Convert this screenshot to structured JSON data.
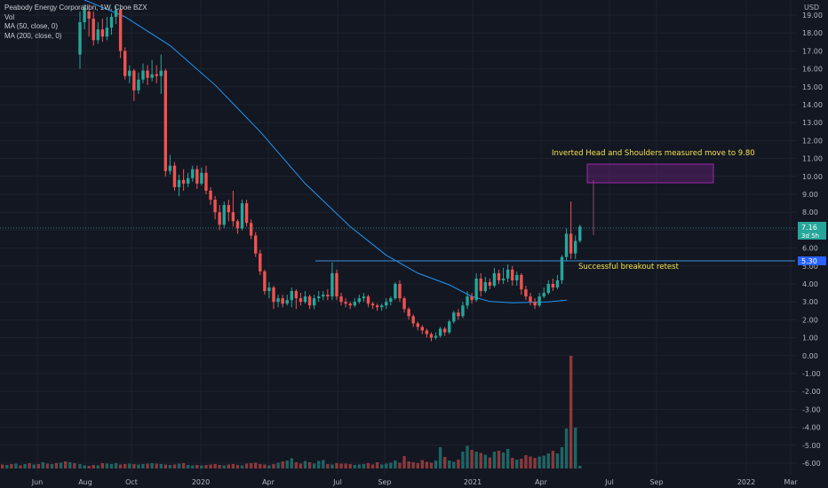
{
  "header": {
    "symbol_line": "Peabody Energy Corporation, 1W, Cboe BZX",
    "vol_label": "Vol",
    "ma50_label": "MA (50, close, 0)",
    "ma200_label": "MA (200, close, 0)"
  },
  "chart_data": {
    "type": "candlestick",
    "currency": "USD",
    "y_ticks": [
      19,
      18,
      17,
      16,
      15,
      14,
      13,
      12,
      11,
      10,
      9,
      8,
      7,
      6,
      5,
      4,
      3,
      2,
      1,
      0,
      -1,
      -2,
      -3,
      -4,
      -5,
      -6
    ],
    "y_tick_labels": [
      "19.00",
      "18.00",
      "17.00",
      "16.00",
      "15.00",
      "14.00",
      "13.00",
      "12.00",
      "11.00",
      "10.00",
      "9.00",
      "8.00",
      "7.00",
      "6.00",
      "5.00",
      "4.00",
      "3.00",
      "2.00",
      "1.00",
      "0.00",
      "-1.00",
      "-2.00",
      "-3.00",
      "-4.00",
      "-5.00",
      "-6.00"
    ],
    "ylim": [
      -6.5,
      19.5
    ],
    "x_labels": [
      "Jun",
      "Aug",
      "Oct",
      "2020",
      "Apr",
      "Jul",
      "Sep",
      "2021",
      "Apr",
      "Jul",
      "Sep",
      "2022",
      "Mar"
    ],
    "price_tag": {
      "value": 7.16,
      "label": "7.16",
      "sub": "3d 5h"
    },
    "level_tag": {
      "value": 5.3,
      "label": "5.30"
    },
    "candles": [
      [
        16.8,
        18.6,
        16.0,
        19.2
      ],
      [
        18.6,
        19.4,
        18.2,
        19.6
      ],
      [
        19.2,
        18.8,
        17.8,
        19.6
      ],
      [
        18.8,
        17.6,
        17.3,
        19.2
      ],
      [
        17.6,
        18.2,
        17.4,
        18.6
      ],
      [
        18.2,
        17.8,
        17.5,
        18.8
      ],
      [
        17.8,
        18.3,
        17.6,
        18.9
      ],
      [
        18.3,
        18.9,
        17.9,
        19.1
      ],
      [
        18.9,
        19.3,
        18.5,
        19.5
      ],
      [
        19.3,
        17.0,
        16.6,
        19.4
      ],
      [
        17.0,
        15.6,
        15.4,
        17.2
      ],
      [
        15.6,
        15.9,
        15.2,
        16.2
      ],
      [
        15.9,
        14.8,
        14.2,
        16.0
      ],
      [
        14.8,
        15.4,
        14.6,
        15.8
      ],
      [
        15.4,
        15.9,
        15.2,
        16.3
      ],
      [
        15.9,
        15.5,
        15.1,
        16.2
      ],
      [
        15.5,
        15.7,
        15.3,
        16.5
      ],
      [
        15.7,
        15.6,
        15.2,
        16.2
      ],
      [
        15.6,
        15.9,
        14.6,
        16.8
      ],
      [
        15.9,
        10.3,
        10.0,
        16.0
      ],
      [
        10.3,
        10.6,
        10.1,
        11.2
      ],
      [
        10.6,
        9.4,
        9.2,
        10.8
      ],
      [
        9.4,
        9.8,
        8.9,
        10.1
      ],
      [
        9.8,
        9.6,
        9.2,
        10.4
      ],
      [
        9.6,
        9.9,
        9.4,
        10.2
      ],
      [
        9.9,
        10.4,
        9.7,
        10.6
      ],
      [
        10.4,
        9.6,
        9.3,
        10.6
      ],
      [
        9.6,
        10.2,
        9.5,
        10.5
      ],
      [
        10.2,
        9.2,
        9.0,
        10.6
      ],
      [
        9.2,
        8.7,
        8.4,
        9.4
      ],
      [
        8.7,
        8.0,
        7.6,
        8.9
      ],
      [
        8.0,
        7.3,
        7.0,
        8.4
      ],
      [
        7.3,
        8.4,
        7.1,
        8.6
      ],
      [
        8.4,
        8.0,
        7.5,
        8.7
      ],
      [
        8.0,
        7.5,
        7.2,
        9.2
      ],
      [
        7.5,
        7.1,
        6.8,
        7.6
      ],
      [
        7.1,
        8.5,
        7.0,
        8.7
      ],
      [
        8.5,
        7.4,
        7.2,
        8.7
      ],
      [
        7.4,
        6.7,
        6.5,
        7.6
      ],
      [
        6.7,
        5.7,
        5.5,
        6.9
      ],
      [
        5.7,
        4.7,
        4.5,
        5.9
      ],
      [
        4.7,
        3.6,
        3.4,
        4.8
      ],
      [
        3.6,
        3.8,
        3.2,
        4.1
      ],
      [
        3.8,
        3.0,
        2.6,
        3.9
      ],
      [
        3.0,
        3.2,
        2.7,
        3.4
      ],
      [
        3.2,
        2.9,
        2.7,
        3.4
      ],
      [
        2.9,
        3.1,
        2.8,
        3.4
      ],
      [
        3.1,
        3.6,
        2.7,
        3.8
      ],
      [
        3.6,
        3.2,
        2.6,
        3.7
      ],
      [
        3.2,
        3.0,
        2.8,
        3.5
      ],
      [
        3.0,
        3.3,
        2.9,
        3.6
      ],
      [
        3.3,
        2.8,
        2.6,
        3.4
      ],
      [
        2.8,
        3.2,
        2.6,
        3.4
      ],
      [
        3.2,
        3.3,
        3.0,
        3.6
      ],
      [
        3.3,
        3.4,
        3.1,
        3.6
      ],
      [
        3.4,
        3.3,
        3.1,
        3.7
      ],
      [
        3.3,
        4.6,
        3.1,
        5.2
      ],
      [
        4.6,
        3.3,
        3.1,
        4.8
      ],
      [
        3.3,
        3.0,
        2.8,
        3.5
      ],
      [
        3.0,
        2.9,
        2.7,
        3.2
      ],
      [
        2.9,
        2.8,
        2.6,
        3.0
      ],
      [
        2.8,
        3.0,
        2.7,
        3.2
      ],
      [
        3.0,
        3.2,
        2.9,
        3.4
      ],
      [
        3.2,
        3.3,
        3.0,
        3.5
      ],
      [
        3.3,
        2.9,
        2.7,
        3.4
      ],
      [
        2.9,
        2.8,
        2.6,
        3.0
      ],
      [
        2.8,
        2.7,
        2.5,
        2.9
      ],
      [
        2.7,
        2.8,
        2.5,
        2.9
      ],
      [
        2.8,
        3.0,
        2.6,
        3.2
      ],
      [
        3.0,
        3.2,
        2.8,
        3.3
      ],
      [
        3.2,
        4.0,
        3.1,
        4.1
      ],
      [
        4.0,
        3.2,
        3.0,
        4.2
      ],
      [
        3.2,
        2.6,
        2.4,
        3.3
      ],
      [
        2.6,
        2.2,
        2.0,
        2.7
      ],
      [
        2.2,
        1.8,
        1.6,
        2.3
      ],
      [
        1.8,
        1.6,
        1.4,
        1.9
      ],
      [
        1.6,
        1.4,
        1.2,
        1.7
      ],
      [
        1.4,
        1.2,
        1.0,
        1.5
      ],
      [
        1.2,
        1.0,
        0.8,
        1.3
      ],
      [
        1.0,
        1.1,
        0.9,
        1.3
      ],
      [
        1.1,
        1.5,
        1.0,
        1.6
      ],
      [
        1.5,
        1.3,
        1.1,
        1.6
      ],
      [
        1.3,
        1.9,
        1.2,
        2.0
      ],
      [
        1.9,
        2.4,
        1.8,
        2.5
      ],
      [
        2.4,
        2.2,
        2.0,
        2.6
      ],
      [
        2.2,
        2.8,
        2.1,
        3.0
      ],
      [
        2.8,
        3.3,
        2.6,
        3.6
      ],
      [
        3.3,
        3.1,
        2.9,
        3.5
      ],
      [
        3.1,
        4.3,
        3.0,
        4.6
      ],
      [
        4.3,
        3.6,
        3.3,
        4.6
      ],
      [
        3.6,
        4.1,
        3.5,
        4.4
      ],
      [
        4.1,
        3.9,
        3.7,
        4.3
      ],
      [
        3.9,
        4.6,
        3.8,
        4.9
      ],
      [
        4.6,
        4.2,
        4.0,
        4.8
      ],
      [
        4.2,
        4.3,
        4.0,
        4.9
      ],
      [
        4.3,
        4.8,
        4.1,
        5.1
      ],
      [
        4.8,
        4.2,
        3.9,
        5.0
      ],
      [
        4.2,
        4.5,
        3.9,
        4.7
      ],
      [
        4.5,
        3.7,
        3.4,
        4.6
      ],
      [
        3.7,
        3.3,
        3.1,
        3.9
      ],
      [
        3.3,
        3.0,
        2.8,
        3.5
      ],
      [
        3.0,
        2.8,
        2.6,
        3.2
      ],
      [
        2.8,
        3.3,
        2.7,
        3.5
      ],
      [
        3.3,
        3.5,
        3.2,
        3.8
      ],
      [
        3.5,
        4.0,
        3.4,
        4.2
      ],
      [
        4.0,
        3.8,
        3.6,
        4.3
      ],
      [
        3.8,
        4.2,
        3.7,
        4.5
      ],
      [
        4.2,
        5.5,
        4.0,
        5.6
      ],
      [
        5.5,
        6.8,
        5.3,
        7.1
      ],
      [
        6.8,
        5.7,
        5.4,
        8.6
      ],
      [
        5.7,
        6.4,
        5.4,
        6.7
      ],
      [
        6.4,
        7.2,
        6.3,
        7.3
      ]
    ],
    "volumes": [
      0.5,
      0.35,
      0.3,
      0.4,
      0.35,
      0.6,
      0.55,
      0.5,
      0.6,
      0.45,
      0.5,
      0.55,
      0.5,
      0.45,
      0.5,
      0.55,
      0.6,
      0.55,
      0.5,
      0.45,
      0.4,
      0.45,
      0.55,
      0.6,
      0.4,
      0.35,
      0.4,
      0.35,
      0.4,
      0.45,
      0.5,
      0.4,
      0.35,
      0.45,
      0.5,
      0.4,
      0.35,
      0.55,
      0.6,
      0.65,
      0.5,
      0.45,
      0.35,
      0.5,
      0.65,
      0.8,
      0.9,
      1.15,
      0.7,
      0.55,
      0.85,
      0.7,
      0.55,
      0.85,
      0.95,
      0.5,
      0.45,
      0.6,
      0.55,
      0.55,
      0.5,
      0.4,
      0.45,
      0.5,
      0.6,
      0.45,
      0.7,
      0.45,
      0.55,
      0.65,
      0.9,
      0.65,
      1.4,
      0.8,
      0.7,
      0.6,
      0.95,
      0.75,
      0.65,
      0.9,
      2.4,
      1.3,
      0.9,
      0.75,
      1.0,
      1.9,
      2.55,
      2.1,
      1.9,
      1.75,
      1.55,
      1.25,
      1.9,
      2.0,
      1.8,
      2.2,
      1.2,
      1.0,
      1.1,
      1.5,
      1.35,
      1.2,
      1.35,
      1.45,
      1.7,
      2.0,
      1.7,
      2.4,
      4.5,
      12.7,
      4.6,
      0.3
    ],
    "ma_200": [
      [
        0,
        19.95
      ],
      [
        10,
        18.9
      ],
      [
        20,
        17.3
      ],
      [
        30,
        15.1
      ],
      [
        40,
        12.5
      ],
      [
        50,
        9.6
      ],
      [
        60,
        7.2
      ],
      [
        68,
        5.6
      ],
      [
        75,
        4.6
      ],
      [
        82,
        3.95
      ],
      [
        87,
        3.3
      ],
      [
        91,
        3.02
      ],
      [
        96,
        2.95
      ],
      [
        104,
        3.0
      ],
      [
        108,
        3.1
      ]
    ],
    "annotations": {
      "projection_text": "Inverted Head and Shoulders measured move to 9.80",
      "retest_text": "Successful breakout retest",
      "neckline_value": 5.3,
      "target_box": [
        9.8,
        10.6
      ]
    }
  }
}
